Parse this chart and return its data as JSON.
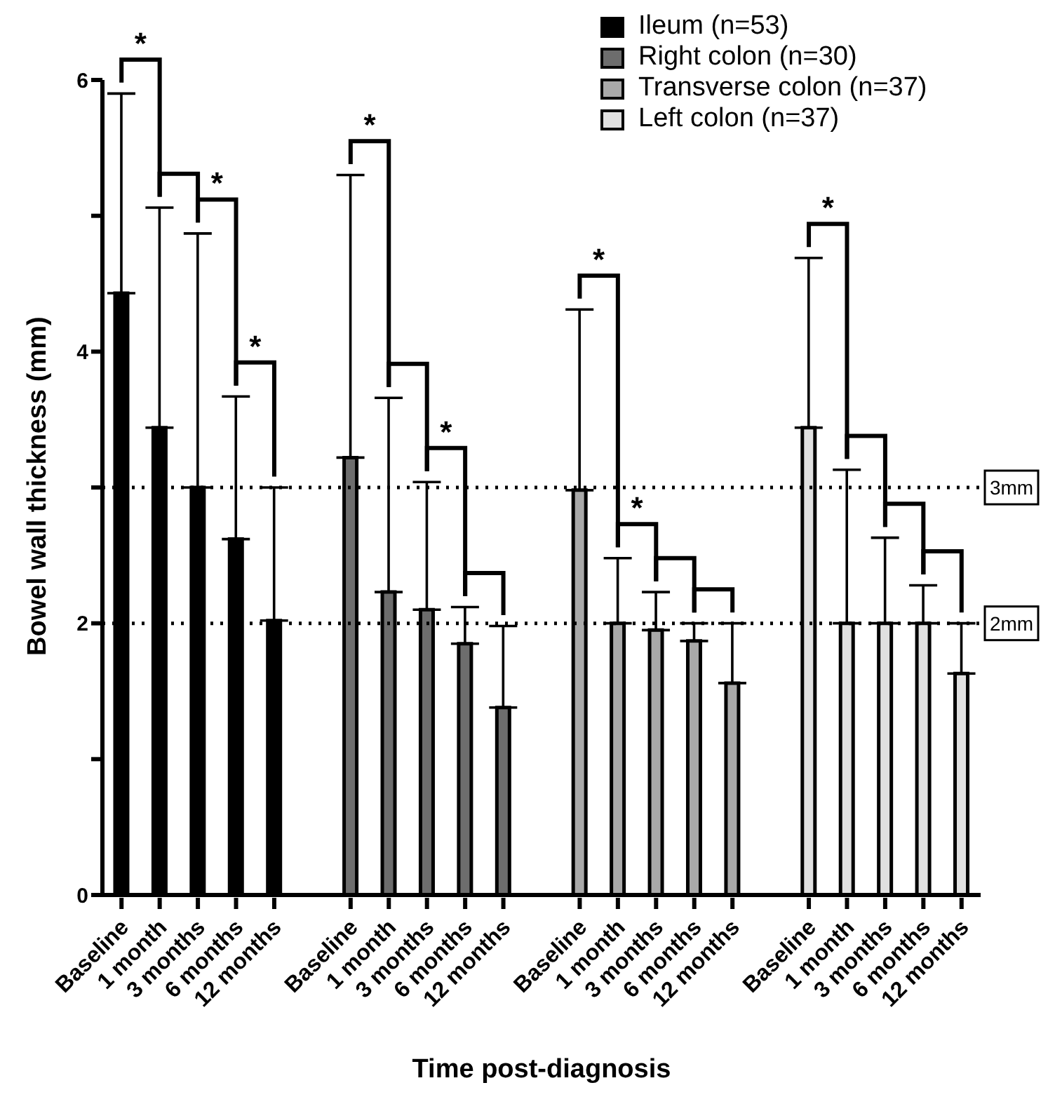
{
  "chart_data": {
    "type": "bar",
    "xlabel": "Time post-diagnosis",
    "ylabel": "Bowel wall thickness (mm)",
    "categories": [
      "Baseline",
      "1 month",
      "3 months",
      "6 months",
      "12 months",
      null,
      "Baseline",
      "1 month",
      "3 months",
      "6 months",
      "12 months",
      null,
      "Baseline",
      "1 month",
      "3 months",
      "6 months",
      "12 months",
      null,
      "Baseline",
      "1 month",
      "3 months",
      "6 months",
      "12 months"
    ],
    "series": [
      {
        "name": "Ileum (n=53)",
        "color": "#000000",
        "values": [
          4.43,
          3.44,
          3.0,
          2.62,
          2.02,
          null,
          null,
          null,
          null,
          null,
          null,
          null,
          null,
          null,
          null,
          null,
          null,
          null,
          null,
          null,
          null,
          null,
          null
        ],
        "errors": [
          [
            4.43,
            5.9
          ],
          [
            3.44,
            5.06
          ],
          [
            3.0,
            4.87
          ],
          [
            2.62,
            3.67
          ],
          [
            2.02,
            3.0
          ],
          null,
          null,
          null,
          null,
          null,
          null,
          null,
          null,
          null,
          null,
          null,
          null,
          null,
          null,
          null,
          null,
          null,
          null
        ]
      },
      {
        "name": "Right colon (n=30)",
        "color": "#6d6d6d",
        "values": [
          null,
          null,
          null,
          null,
          null,
          null,
          3.22,
          2.23,
          2.1,
          1.85,
          1.38,
          null,
          null,
          null,
          null,
          null,
          null,
          null,
          null,
          null,
          null,
          null,
          null
        ],
        "errors": [
          null,
          null,
          null,
          null,
          null,
          null,
          [
            3.22,
            5.3
          ],
          [
            2.23,
            3.66
          ],
          [
            2.1,
            3.04
          ],
          [
            1.85,
            2.12
          ],
          [
            1.38,
            1.98
          ],
          null,
          null,
          null,
          null,
          null,
          null,
          null,
          null,
          null,
          null,
          null,
          null
        ]
      },
      {
        "name": "Transverse colon (n=37)",
        "color": "#a9a9a9",
        "values": [
          null,
          null,
          null,
          null,
          null,
          null,
          null,
          null,
          null,
          null,
          null,
          null,
          2.98,
          2.0,
          1.95,
          1.87,
          1.56,
          null,
          null,
          null,
          null,
          null,
          null
        ],
        "errors": [
          null,
          null,
          null,
          null,
          null,
          null,
          null,
          null,
          null,
          null,
          null,
          null,
          [
            2.98,
            4.31
          ],
          [
            2.0,
            2.48
          ],
          [
            1.95,
            2.23
          ],
          [
            1.87,
            2.0
          ],
          [
            1.56,
            2.0
          ],
          null,
          null,
          null,
          null,
          null,
          null
        ]
      },
      {
        "name": "Left colon (n=37)",
        "color": "#e0e0e0",
        "values": [
          null,
          null,
          null,
          null,
          null,
          null,
          null,
          null,
          null,
          null,
          null,
          null,
          null,
          null,
          null,
          null,
          null,
          null,
          3.44,
          2.0,
          2.0,
          2.0,
          1.63
        ],
        "errors": [
          null,
          null,
          null,
          null,
          null,
          null,
          null,
          null,
          null,
          null,
          null,
          null,
          null,
          null,
          null,
          null,
          null,
          null,
          [
            3.44,
            4.69
          ],
          [
            2.0,
            3.13
          ],
          [
            2.0,
            2.63
          ],
          [
            2.0,
            2.28
          ],
          [
            1.63,
            2.0
          ]
        ]
      }
    ],
    "ylim": [
      0,
      6
    ],
    "yticks": [
      0,
      {
        "value": 1,
        "label": null
      },
      2,
      {
        "value": 3,
        "label": null
      },
      4,
      {
        "value": 5,
        "label": null
      },
      6
    ],
    "ref_lines": [
      {
        "axis": "y",
        "value": 3,
        "label": "3mm",
        "color": "#000000",
        "line_style": "dotted"
      },
      {
        "axis": "y",
        "value": 2,
        "label": "2mm",
        "color": "#000000",
        "line_style": "dotted"
      }
    ],
    "annotations": [
      "*",
      "*",
      "*",
      "*",
      "*",
      "*",
      "*",
      "*"
    ],
    "legend": "top right"
  }
}
